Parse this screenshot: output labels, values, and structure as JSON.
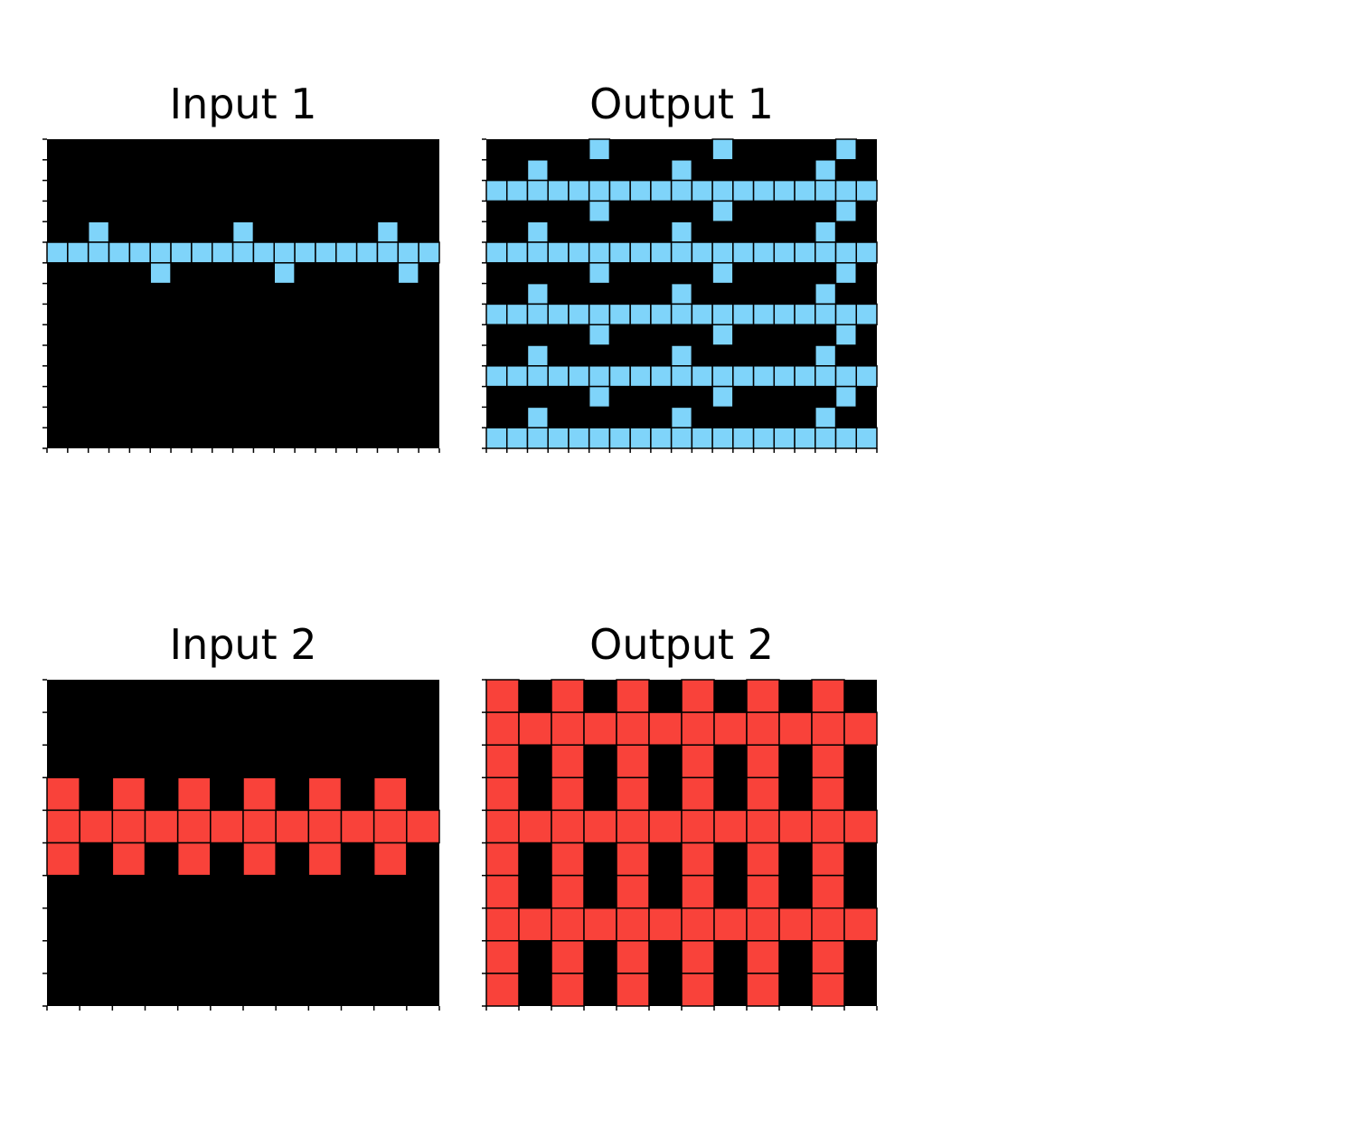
{
  "colors": {
    "0": "#000000",
    "8": "#7fd4fa",
    "2": "#f9423a",
    "cell_border": "#000000",
    "background": "#ffffff"
  },
  "pairs": [
    {
      "input": {
        "title": "Input 1",
        "grid": [
          "0000000000000000000",
          "0000000000000000000",
          "0000000000000000000",
          "0000000000000000000",
          "0080000008000000800",
          "8888888888888888888",
          "0000080000080000080",
          "0000000000000000000",
          "0000000000000000000",
          "0000000000000000000",
          "0000000000000000000",
          "0000000000000000000",
          "0000000000000000000",
          "0000000000000000000",
          "0000000000000000000"
        ]
      },
      "output": {
        "title": "Output 1",
        "grid": [
          "0000080000080000080",
          "0080000008000000800",
          "8888888888888888888",
          "0000080000080000080",
          "0080000008000000800",
          "8888888888888888888",
          "0000080000080000080",
          "0080000008000000800",
          "8888888888888888888",
          "0000080000080000080",
          "0080000008000000800",
          "8888888888888888888",
          "0000080000080000080",
          "0080000008000000800",
          "8888888888888888888"
        ]
      }
    },
    {
      "input": {
        "title": "Input 2",
        "grid": [
          "000000000000",
          "000000000000",
          "000000000000",
          "202020202020",
          "222222222222",
          "202020202020",
          "000000000000",
          "000000000000",
          "000000000000",
          "000000000000"
        ]
      },
      "output": {
        "title": "Output 2",
        "grid": [
          "202020202020",
          "222222222222",
          "202020202020",
          "202020202020",
          "222222222222",
          "202020202020",
          "202020202020",
          "222222222222",
          "202020202020",
          "202020202020"
        ]
      }
    }
  ]
}
